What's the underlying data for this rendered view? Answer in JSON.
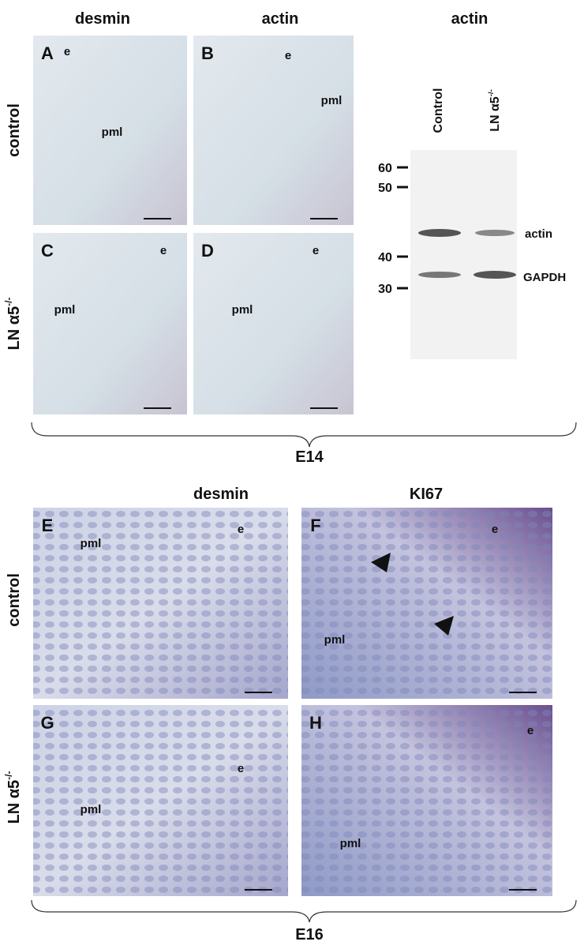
{
  "e14": {
    "headers": [
      "desmin",
      "actin"
    ],
    "rows": [
      {
        "text": "control"
      },
      {
        "text": "LN α5",
        "sup": "-/-"
      }
    ],
    "panels": [
      {
        "letter": "A",
        "labels": [
          "e",
          "pml"
        ]
      },
      {
        "letter": "B",
        "labels": [
          "e",
          "pml"
        ]
      },
      {
        "letter": "C",
        "labels": [
          "e",
          "pml"
        ]
      },
      {
        "letter": "D",
        "labels": [
          "e",
          "pml"
        ]
      }
    ],
    "group": "E14"
  },
  "blot": {
    "title": "actin",
    "lanes": [
      {
        "text": "Control"
      },
      {
        "text": "LN α5",
        "sup": "-/-"
      }
    ],
    "markers": [
      "60",
      "50",
      "40",
      "30"
    ],
    "bands": [
      "actin",
      "GAPDH"
    ]
  },
  "e16": {
    "headers": [
      "desmin",
      "KI67"
    ],
    "rows": [
      {
        "text": "control"
      },
      {
        "text": "LN α5",
        "sup": "-/-"
      }
    ],
    "panels": [
      {
        "letter": "E",
        "labels": [
          "e",
          "pml"
        ]
      },
      {
        "letter": "F",
        "labels": [
          "e",
          "pml"
        ]
      },
      {
        "letter": "G",
        "labels": [
          "e",
          "pml"
        ]
      },
      {
        "letter": "H",
        "labels": [
          "e",
          "pml"
        ]
      }
    ],
    "group": "E16"
  }
}
